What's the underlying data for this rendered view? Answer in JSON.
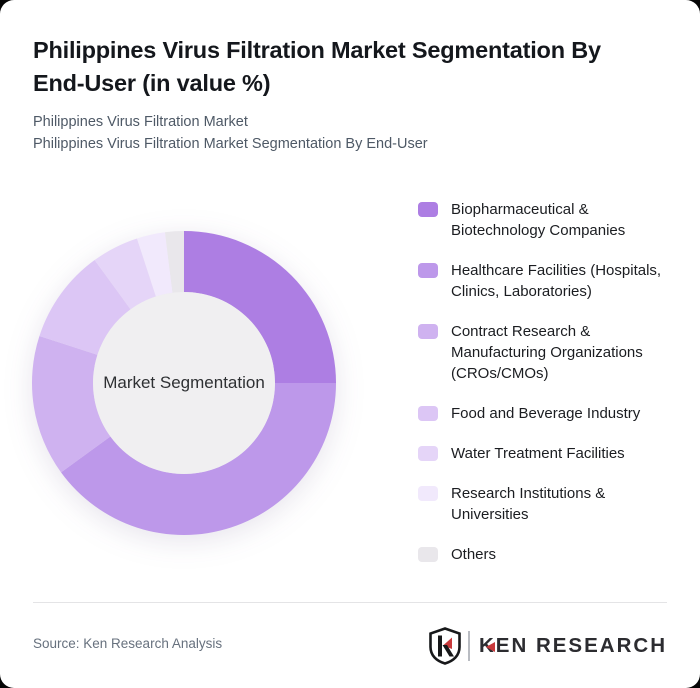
{
  "page": {
    "background": "#050505",
    "card_background": "#ffffff"
  },
  "header": {
    "title_lines": [
      "Philippines Virus Filtration Market Segmentation By",
      "End-User (in value %)"
    ],
    "subtitle_lines": [
      "Philippines Virus Filtration Market",
      "Philippines Virus Filtration Market Segmentation By End-User"
    ]
  },
  "chart_data": {
    "type": "pie",
    "variant": "donut",
    "title": "Philippines Virus Filtration Market Segmentation By End-User (in value %)",
    "center_label": "Market Segmentation",
    "direction": "clockwise",
    "start_angle_deg": 0,
    "inner_radius_ratio": 0.6,
    "center_fill": "#f0eff1",
    "legend_position": "right",
    "segments": [
      {
        "label": "Biopharmaceutical & Biotechnology Companies",
        "value_pct": 25,
        "color": "#ad7ee3"
      },
      {
        "label": "Healthcare Facilities (Hospitals, Clinics, Laboratories)",
        "value_pct": 40,
        "color": "#bd98ea"
      },
      {
        "label": "Contract Research & Manufacturing Organizations (CROs/CMOs)",
        "value_pct": 15,
        "color": "#cfb2f0"
      },
      {
        "label": "Food and Beverage Industry",
        "value_pct": 10,
        "color": "#dcc6f5"
      },
      {
        "label": "Water Treatment Facilities",
        "value_pct": 5,
        "color": "#e5d5f8"
      },
      {
        "label": "Research Institutions & Universities",
        "value_pct": 3,
        "color": "#f1e9fc"
      },
      {
        "label": "Others",
        "value_pct": 2,
        "color": "#e9e7eb"
      }
    ]
  },
  "legend": {
    "items": [
      {
        "lines": [
          "Biopharmaceutical &",
          "Biotechnology Companies"
        ],
        "color": "#ad7ee3"
      },
      {
        "lines": [
          "Healthcare Facilities (Hospitals,",
          "Clinics, Laboratories)"
        ],
        "color": "#bd98ea"
      },
      {
        "lines": [
          "Contract Research &",
          "Manufacturing Organizations",
          "(CROs/CMOs)"
        ],
        "color": "#cfb2f0"
      },
      {
        "lines": [
          "Food and Beverage Industry"
        ],
        "color": "#dcc6f5"
      },
      {
        "lines": [
          "Water Treatment Facilities"
        ],
        "color": "#e5d5f8"
      },
      {
        "lines": [
          "Research Institutions &",
          "Universities"
        ],
        "color": "#f1e9fc"
      },
      {
        "lines": [
          "Others"
        ],
        "color": "#e9e7eb"
      }
    ]
  },
  "footer": {
    "source": "Source: Ken Research Analysis",
    "logo": {
      "shield_letter": "K",
      "brand_k": "K",
      "brand_rest": "EN RESEARCH",
      "accent_color": "#c8393b",
      "text_color": "#2c2c30"
    }
  }
}
